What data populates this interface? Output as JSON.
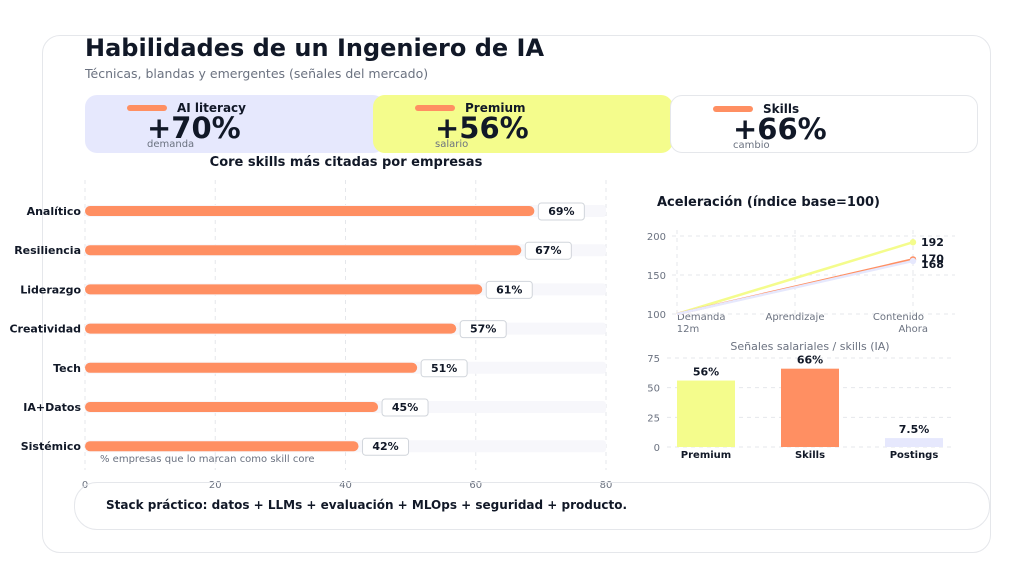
{
  "header": {
    "title": "Habilidades de un Ingeniero de IA",
    "subtitle": "Técnicas, blandas y emergentes (señales del mercado)"
  },
  "kpis": [
    {
      "label": "AI literacy",
      "value": "+70%",
      "sub": "demanda",
      "bg": "#e6e8fd",
      "dot": "#ff8f62"
    },
    {
      "label": "Premium",
      "value": "+56%",
      "sub": "salario",
      "bg": "#f4fc8c",
      "dot": "#ff8f62"
    },
    {
      "label": "Skills",
      "value": "+66%",
      "sub": "cambio",
      "bg": "#ffffff",
      "dot": "#ff8f62"
    }
  ],
  "footer": {
    "text": "Stack práctico: datos + LLMs + evaluación + MLOps + seguridad + producto."
  },
  "colors": {
    "orange": "#ff8f62",
    "yellow": "#f4fc8c",
    "lavender": "#e6e8fd",
    "text": "#111827",
    "muted": "#6b7280",
    "grid": "#e5e7eb"
  },
  "chart_data": [
    {
      "type": "bar",
      "orientation": "horizontal",
      "title": "Core skills más citadas por empresas",
      "categories": [
        "Analítico",
        "Resiliencia",
        "Liderazgo",
        "Creatividad",
        "Tech",
        "IA+Datos",
        "Sistémico"
      ],
      "values": [
        69,
        67,
        61,
        57,
        51,
        45,
        42
      ],
      "data_labels": [
        "69%",
        "67%",
        "61%",
        "57%",
        "51%",
        "45%",
        "42%"
      ],
      "x_ticks": [
        "0",
        "20",
        "40",
        "60",
        "80"
      ],
      "xlim": [
        0,
        80
      ],
      "grid": true,
      "annotation": "% empresas que lo marcan como skill core"
    },
    {
      "type": "line",
      "title": "Aceleración (índice base=100)",
      "x": [
        "Demanda 12m",
        "Aprendizaje",
        "Contenido Ahora"
      ],
      "x_tick_lines": [
        [
          "Demanda",
          "12m"
        ],
        [
          "Aprendizaje"
        ],
        [
          "Contenido",
          "Ahora"
        ]
      ],
      "series": [
        {
          "values": [
            100,
            146,
            192
          ],
          "end_label": "192",
          "color": "#f4fc8c"
        },
        {
          "values": [
            100,
            135,
            170
          ],
          "end_label": "170",
          "color": "#ff8f62"
        },
        {
          "values": [
            100,
            134,
            168
          ],
          "end_label": "168",
          "color": "#e6e8fd"
        }
      ],
      "y_ticks": [
        "100",
        "150",
        "200"
      ],
      "ylim": [
        100,
        200
      ],
      "grid": true
    },
    {
      "type": "bar",
      "title": "Señales salariales / skills (IA)",
      "categories": [
        "Premium",
        "Skills",
        "Postings"
      ],
      "values": [
        56,
        66,
        7.5
      ],
      "data_labels": [
        "56%",
        "66%",
        "7.5%"
      ],
      "colors": [
        "#f4fc8c",
        "#ff8f62",
        "#e6e8fd"
      ],
      "y_ticks": [
        "0",
        "25",
        "50",
        "75"
      ],
      "ylim": [
        0,
        75
      ],
      "grid": true
    }
  ]
}
